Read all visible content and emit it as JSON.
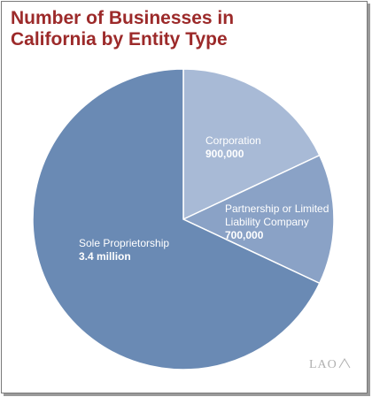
{
  "header": {
    "title_line1": "Number of Businesses in",
    "title_line2": "California by Entity Type"
  },
  "logo": {
    "text": "LAO"
  },
  "colors": {
    "title": "#9c2a2a",
    "sole": "#6a8ab4",
    "corporation": "#a8bad6",
    "partnership": "#8aa2c6"
  },
  "chart_data": {
    "type": "pie",
    "title": "Number of Businesses in California by Entity Type",
    "slices": [
      {
        "label": "Corporation",
        "label_lines": [
          "Corporation"
        ],
        "value": 900000,
        "value_label": "900,000",
        "color": "#a8bad6"
      },
      {
        "label": "Partnership or Limited Liability Company",
        "label_lines": [
          "Partnership or Limited",
          "Liability Company"
        ],
        "value": 700000,
        "value_label": "700,000",
        "color": "#8aa2c6"
      },
      {
        "label": "Sole Proprietorship",
        "label_lines": [
          "Sole Proprietorship"
        ],
        "value": 3400000,
        "value_label": "3.4 million",
        "color": "#6a8ab4"
      }
    ],
    "start_angle_deg": 0,
    "direction": "clockwise"
  }
}
